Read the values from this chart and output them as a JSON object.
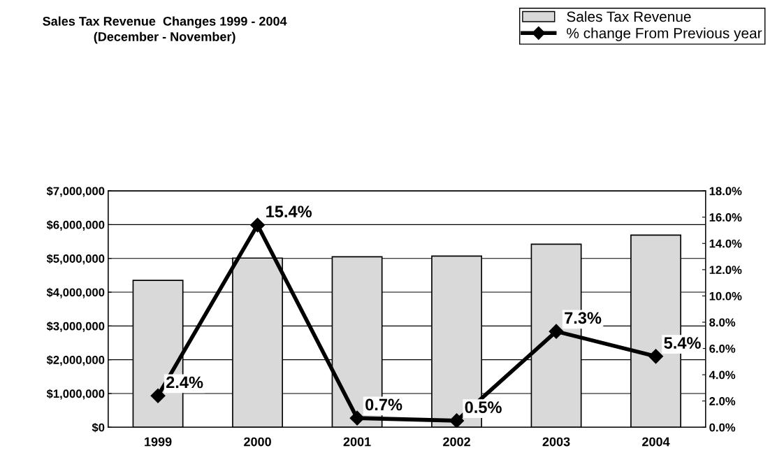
{
  "chart_data": {
    "type": "bar",
    "title": "Sales Tax Revenue  Changes 1999 - 2004\n(December - November)",
    "categories": [
      "1999",
      "2000",
      "2001",
      "2002",
      "2003",
      "2004"
    ],
    "series": [
      {
        "name": "Sales Tax Revenue",
        "color": "#d9d9d9",
        "values": [
          4350000,
          5010000,
          5050000,
          5070000,
          5420000,
          5690000
        ]
      },
      {
        "name": "% change From Previous year",
        "type": "line",
        "axis": "y2",
        "color": "#000000",
        "values": [
          2.4,
          15.4,
          0.7,
          0.5,
          7.3,
          5.4
        ],
        "value_labels": [
          "2.4%",
          "15.4%",
          "0.7%",
          "0.5%",
          "7.3%",
          "5.4%"
        ]
      }
    ],
    "ylim": [
      0,
      7000000
    ],
    "yticks": [
      {
        "value": 0,
        "label": "$0"
      },
      {
        "value": 1000000,
        "label": "$1,000,000"
      },
      {
        "value": 2000000,
        "label": "$2,000,000"
      },
      {
        "value": 3000000,
        "label": "$3,000,000"
      },
      {
        "value": 4000000,
        "label": "$4,000,000"
      },
      {
        "value": 5000000,
        "label": "$5,000,000"
      },
      {
        "value": 6000000,
        "label": "$6,000,000"
      },
      {
        "value": 7000000,
        "label": "$7,000,000"
      }
    ],
    "y2lim": [
      0,
      18
    ],
    "y2ticks": [
      {
        "value": 0,
        "label": "0.0%"
      },
      {
        "value": 2,
        "label": "2.0%"
      },
      {
        "value": 4,
        "label": "4.0%"
      },
      {
        "value": 6,
        "label": "6.0%"
      },
      {
        "value": 8,
        "label": "8.0%"
      },
      {
        "value": 10,
        "label": "10.0%"
      },
      {
        "value": 12,
        "label": "12.0%"
      },
      {
        "value": 14,
        "label": "14.0%"
      },
      {
        "value": 16,
        "label": "16.0%"
      },
      {
        "value": 18,
        "label": "18.0%"
      }
    ],
    "grid": "y",
    "legend": "top right",
    "marker": "diamond",
    "line_style": "solid"
  }
}
